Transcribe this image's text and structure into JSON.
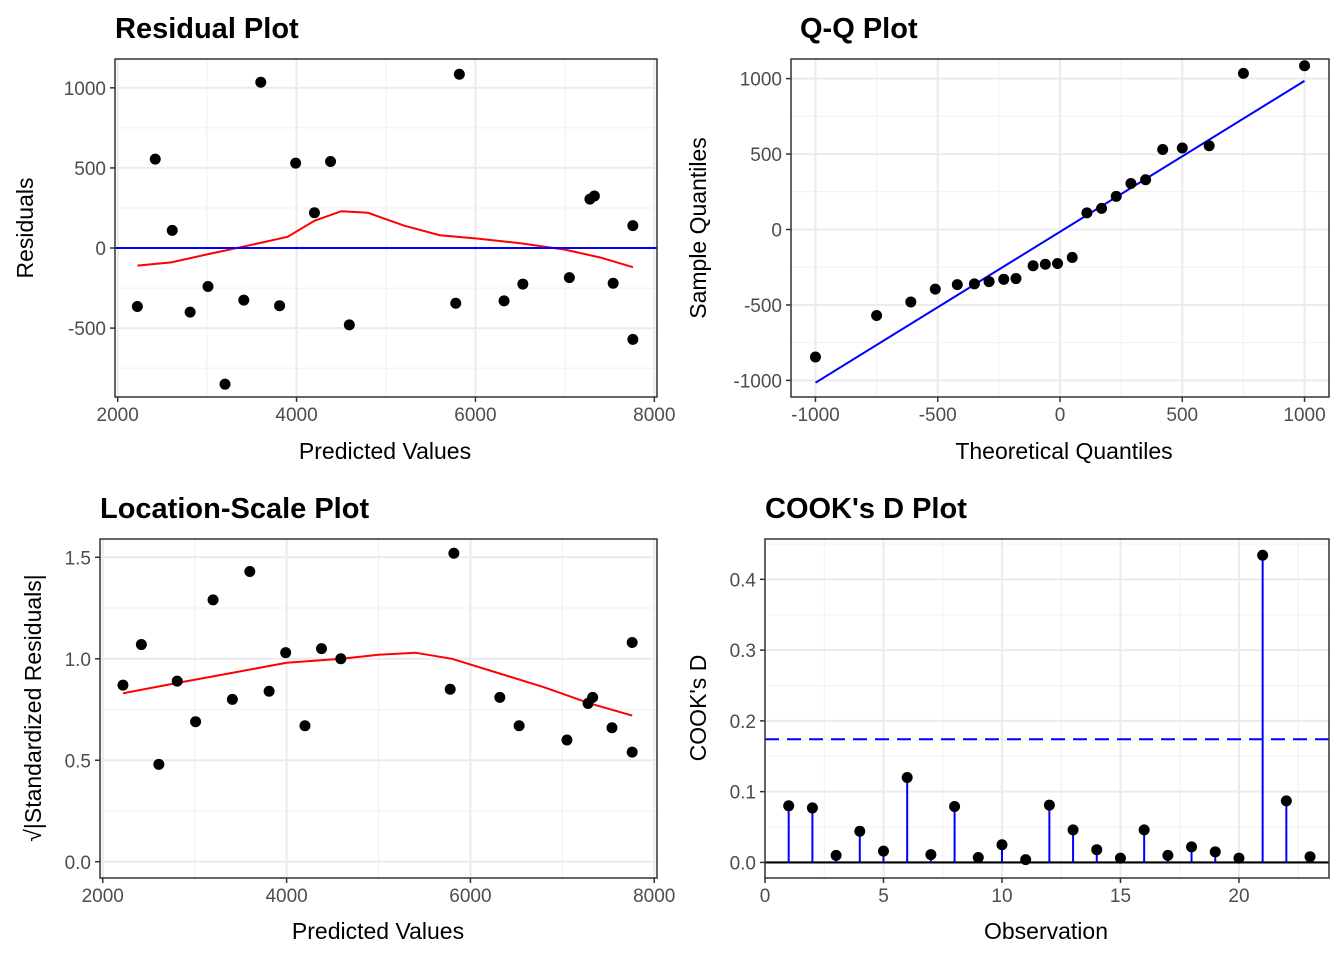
{
  "chart_data": [
    {
      "id": "residual",
      "type": "scatter",
      "title": "Residual Plot",
      "xlabel": "Predicted Values",
      "ylabel": "Residuals",
      "xlim": [
        1970,
        8030
      ],
      "ylim": [
        -930,
        1180
      ],
      "x_ticks": [
        2000,
        4000,
        6000,
        8000
      ],
      "x_tick_labels": [
        "2000",
        "4000",
        "6000",
        "8000"
      ],
      "y_ticks": [
        -500,
        0,
        500,
        1000
      ],
      "y_tick_labels": [
        "-500",
        "0",
        "500",
        "1000"
      ],
      "grid": true,
      "points": [
        [
          2220,
          -365
        ],
        [
          2420,
          555
        ],
        [
          2610,
          110
        ],
        [
          2810,
          -400
        ],
        [
          3010,
          -240
        ],
        [
          3200,
          -850
        ],
        [
          3410,
          -325
        ],
        [
          3600,
          1035
        ],
        [
          3810,
          -360
        ],
        [
          3990,
          530
        ],
        [
          4200,
          220
        ],
        [
          4380,
          540
        ],
        [
          4590,
          -480
        ],
        [
          5780,
          -345
        ],
        [
          5820,
          1085
        ],
        [
          6320,
          -330
        ],
        [
          6530,
          -225
        ],
        [
          7050,
          -185
        ],
        [
          7280,
          305
        ],
        [
          7330,
          325
        ],
        [
          7540,
          -220
        ],
        [
          7760,
          140
        ],
        [
          7760,
          -570
        ]
      ],
      "series": [
        {
          "name": "",
          "color": "#ff0000",
          "values": [
            [
              2220,
              -110
            ],
            [
              2600,
              -90
            ],
            [
              3000,
              -40
            ],
            [
              3500,
              20
            ],
            [
              3900,
              70
            ],
            [
              4200,
              170
            ],
            [
              4500,
              230
            ],
            [
              4800,
              220
            ],
            [
              5200,
              140
            ],
            [
              5600,
              80
            ],
            [
              6000,
              60
            ],
            [
              6500,
              30
            ],
            [
              7000,
              -10
            ],
            [
              7400,
              -60
            ],
            [
              7760,
              -120
            ]
          ]
        },
        {
          "name": "",
          "color": "#0000ff",
          "values": [
            [
              1970,
              0
            ],
            [
              8030,
              0
            ]
          ]
        }
      ]
    },
    {
      "id": "qq",
      "type": "scatter",
      "title": "Q-Q Plot",
      "xlabel": "Theoretical Quantiles",
      "ylabel": "Sample Quantiles",
      "xlim": [
        -1100,
        1100
      ],
      "ylim": [
        -1110,
        1130
      ],
      "x_ticks": [
        -1000,
        -500,
        0,
        500,
        1000
      ],
      "x_tick_labels": [
        "-1000",
        "-500",
        "0",
        "500",
        "1000"
      ],
      "y_ticks": [
        -1000,
        -500,
        0,
        500,
        1000
      ],
      "y_tick_labels": [
        "-1000",
        "-500",
        "0",
        "500",
        "1000"
      ],
      "grid": true,
      "points": [
        [
          -1000,
          -845
        ],
        [
          -750,
          -570
        ],
        [
          -610,
          -480
        ],
        [
          -510,
          -395
        ],
        [
          -420,
          -365
        ],
        [
          -350,
          -360
        ],
        [
          -290,
          -345
        ],
        [
          -230,
          -330
        ],
        [
          -180,
          -325
        ],
        [
          -110,
          -240
        ],
        [
          -60,
          -230
        ],
        [
          -10,
          -225
        ],
        [
          50,
          -185
        ],
        [
          110,
          110
        ],
        [
          170,
          140
        ],
        [
          230,
          220
        ],
        [
          290,
          305
        ],
        [
          350,
          330
        ],
        [
          420,
          530
        ],
        [
          500,
          540
        ],
        [
          610,
          555
        ],
        [
          750,
          1035
        ],
        [
          1000,
          1085
        ]
      ],
      "series": [
        {
          "name": "",
          "color": "#0000ff",
          "values": [
            [
              -1000,
              -1015
            ],
            [
              1000,
              985
            ]
          ]
        }
      ]
    },
    {
      "id": "location-scale",
      "type": "scatter",
      "title": "Location-Scale Plot",
      "xlabel": "Predicted Values",
      "ylabel": "√|Standardized Residuals|",
      "xlim": [
        1970,
        8030
      ],
      "ylim": [
        -0.08,
        1.59
      ],
      "x_ticks": [
        2000,
        4000,
        6000,
        8000
      ],
      "x_tick_labels": [
        "2000",
        "4000",
        "6000",
        "8000"
      ],
      "y_ticks": [
        0.0,
        0.5,
        1.0,
        1.5
      ],
      "y_tick_labels": [
        "0.0",
        "0.5",
        "1.0",
        "1.5"
      ],
      "grid": true,
      "points": [
        [
          2220,
          0.87
        ],
        [
          2420,
          1.07
        ],
        [
          2610,
          0.48
        ],
        [
          2810,
          0.89
        ],
        [
          3010,
          0.69
        ],
        [
          3200,
          1.29
        ],
        [
          3410,
          0.8
        ],
        [
          3600,
          1.43
        ],
        [
          3810,
          0.84
        ],
        [
          3990,
          1.03
        ],
        [
          4200,
          0.67
        ],
        [
          4380,
          1.05
        ],
        [
          4590,
          1.0
        ],
        [
          5780,
          0.85
        ],
        [
          5820,
          1.52
        ],
        [
          6320,
          0.81
        ],
        [
          6530,
          0.67
        ],
        [
          7050,
          0.6
        ],
        [
          7280,
          0.78
        ],
        [
          7330,
          0.81
        ],
        [
          7540,
          0.66
        ],
        [
          7760,
          1.08
        ],
        [
          7760,
          0.54
        ]
      ],
      "series": [
        {
          "name": "",
          "color": "#ff0000",
          "values": [
            [
              2220,
              0.83
            ],
            [
              2800,
              0.88
            ],
            [
              3400,
              0.93
            ],
            [
              4000,
              0.98
            ],
            [
              4600,
              1.0
            ],
            [
              5000,
              1.02
            ],
            [
              5400,
              1.03
            ],
            [
              5800,
              1.0
            ],
            [
              6300,
              0.93
            ],
            [
              6800,
              0.86
            ],
            [
              7300,
              0.78
            ],
            [
              7760,
              0.72
            ]
          ]
        }
      ]
    },
    {
      "id": "cooks-d",
      "type": "lollipop",
      "title": "COOK's D Plot",
      "xlabel": "Observation",
      "ylabel": "COOK's D",
      "xlim": [
        0,
        23.8
      ],
      "ylim": [
        -0.022,
        0.457
      ],
      "x_ticks": [
        0,
        5,
        10,
        15,
        20
      ],
      "x_tick_labels": [
        "0",
        "5",
        "10",
        "15",
        "20"
      ],
      "y_ticks": [
        0.0,
        0.1,
        0.2,
        0.3,
        0.4
      ],
      "y_tick_labels": [
        "0.0",
        "0.1",
        "0.2",
        "0.3",
        "0.4"
      ],
      "grid": true,
      "threshold": 0.174,
      "x": [
        1,
        2,
        3,
        4,
        5,
        6,
        7,
        8,
        9,
        10,
        11,
        12,
        13,
        14,
        15,
        16,
        17,
        18,
        19,
        20,
        21,
        22,
        23
      ],
      "values": [
        0.08,
        0.077,
        0.01,
        0.044,
        0.016,
        0.12,
        0.011,
        0.079,
        0.007,
        0.025,
        0.004,
        0.081,
        0.046,
        0.018,
        0.006,
        0.046,
        0.01,
        0.022,
        0.015,
        0.006,
        0.434,
        0.087,
        0.008
      ]
    }
  ]
}
